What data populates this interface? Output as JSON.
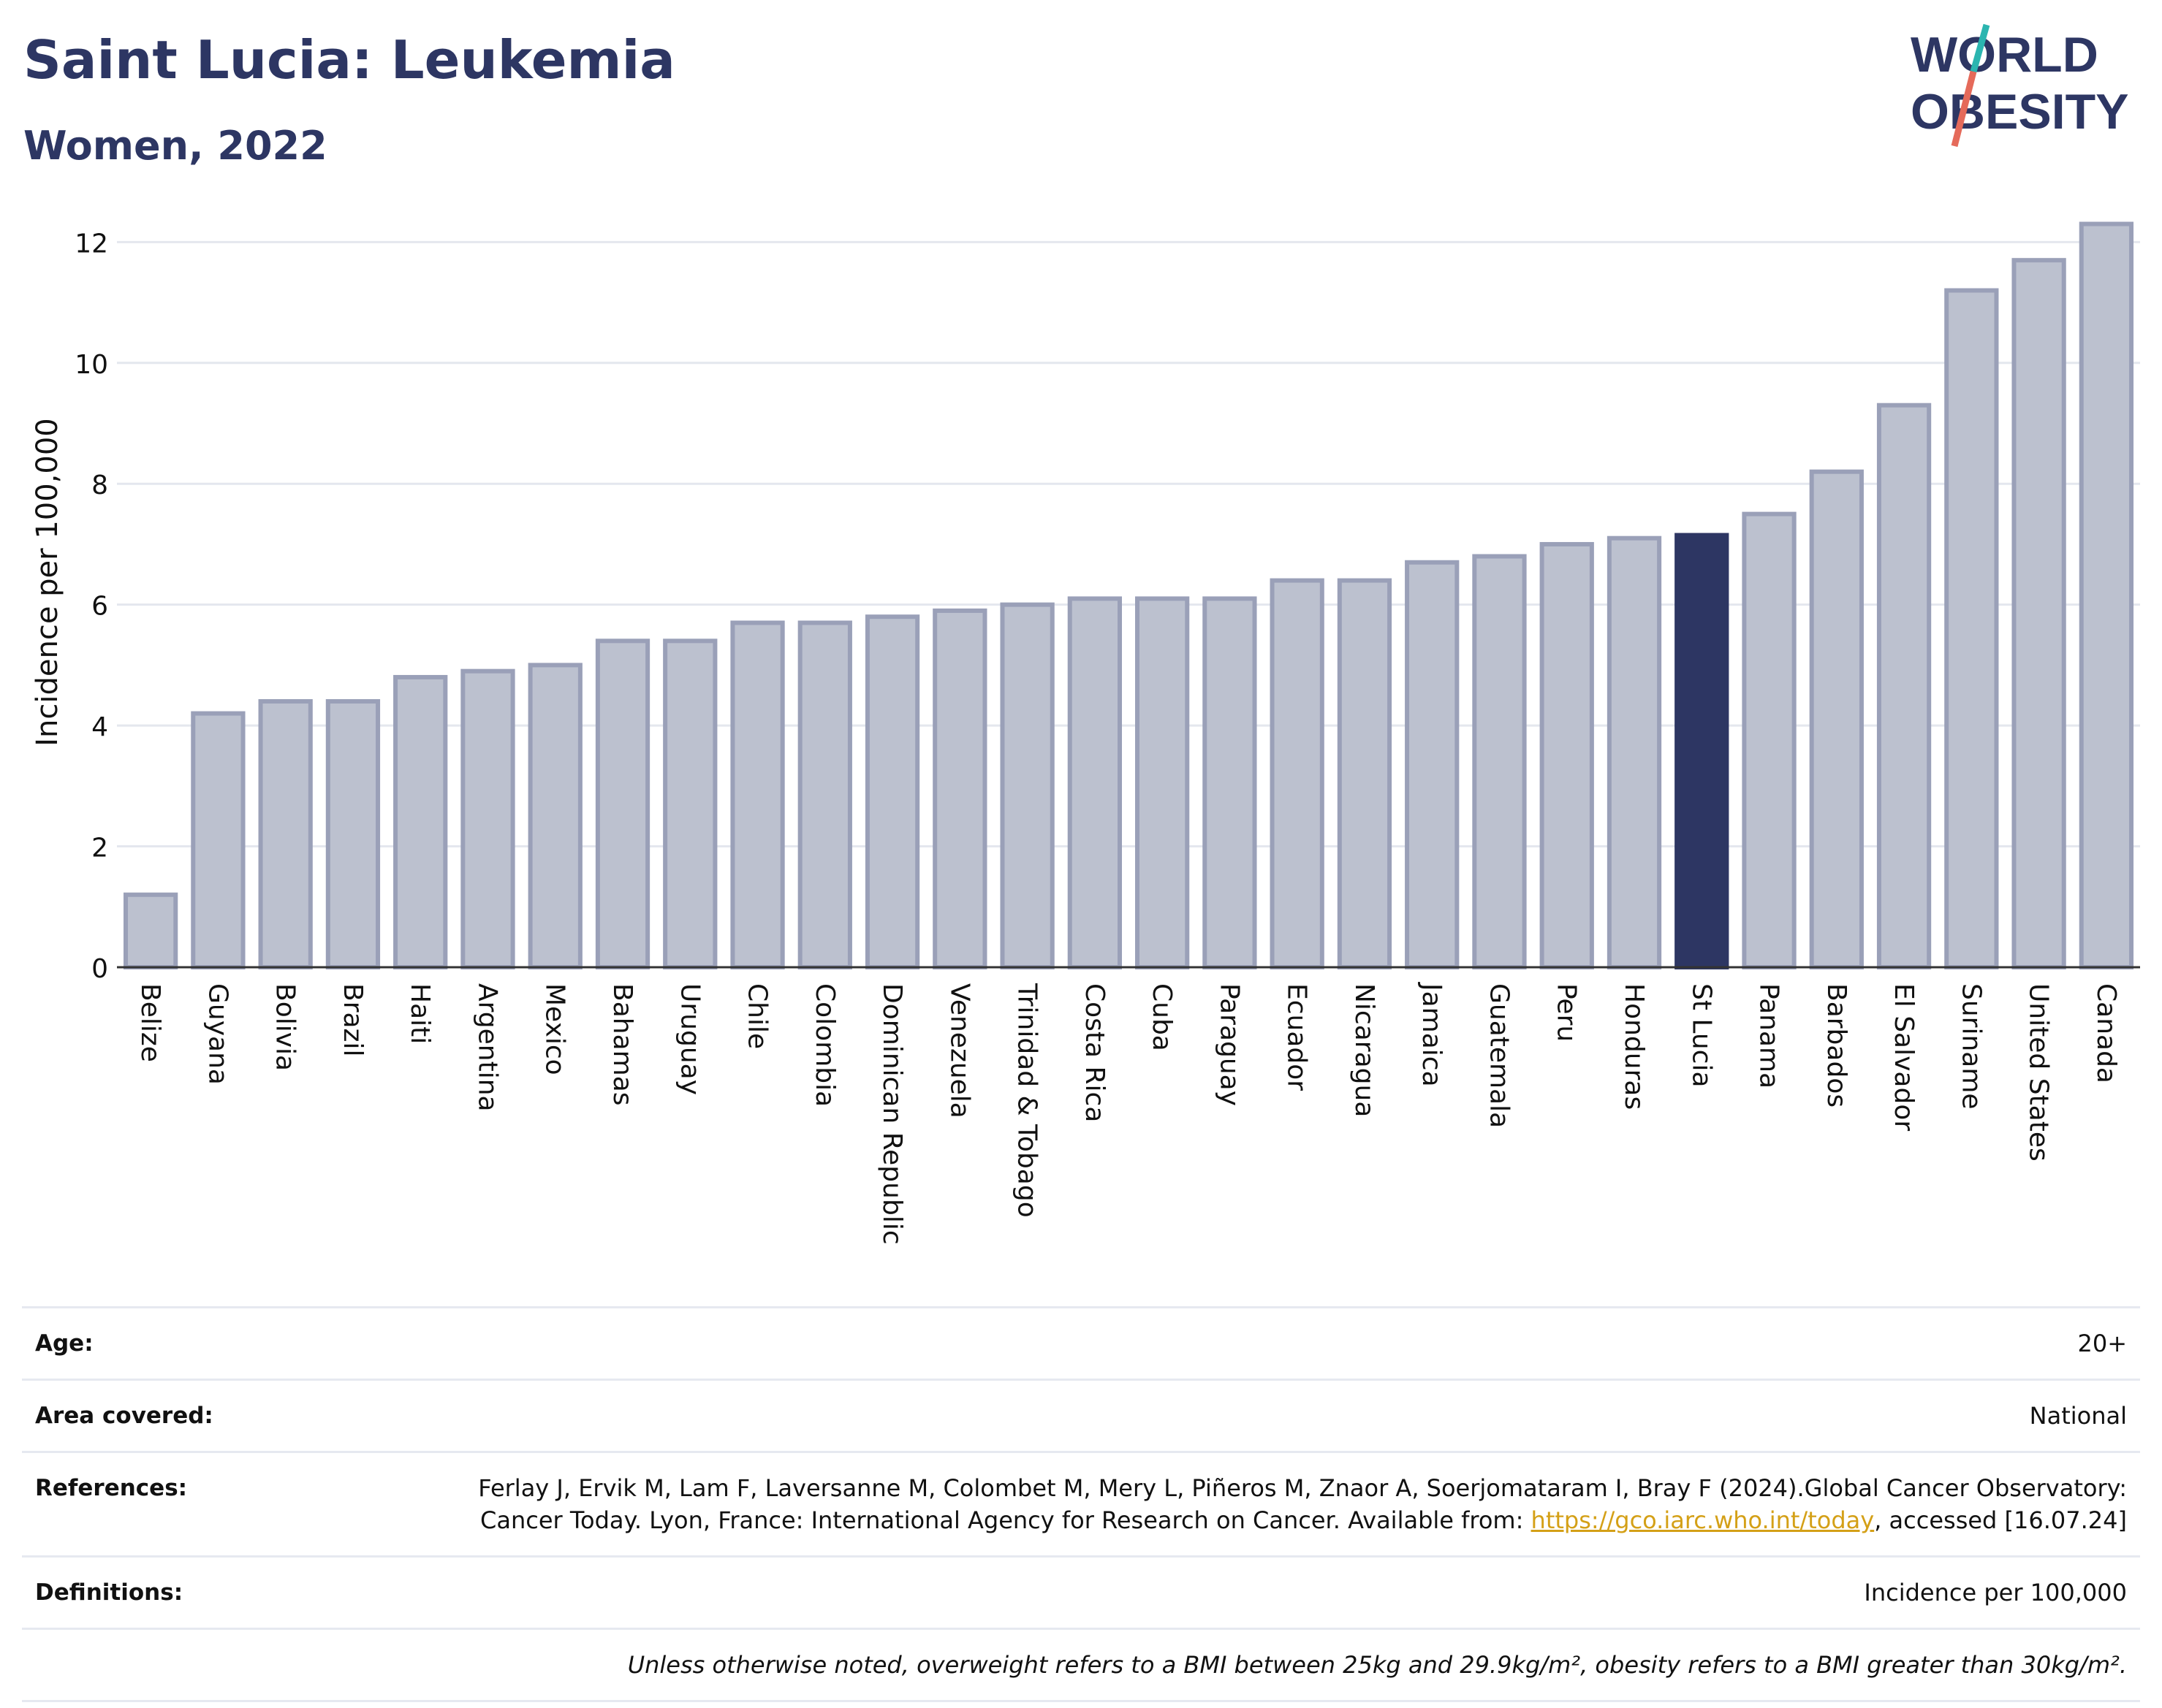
{
  "header": {
    "title": "Saint Lucia: Leukemia",
    "subtitle": "Women, 2022"
  },
  "logo": {
    "line1": "WORLD",
    "line2": "OBESITY"
  },
  "chart_data": {
    "type": "bar",
    "ylabel": "Incidence per 100,000",
    "ylim": [
      0,
      12.5
    ],
    "yticks": [
      0,
      2,
      4,
      6,
      8,
      10,
      12
    ],
    "grid": true,
    "highlight": "St Lucia",
    "colors": {
      "bar": "#bcc1cf",
      "bar_edge": "#9aa0b8",
      "highlight": "#2d3663"
    },
    "categories": [
      "Belize",
      "Guyana",
      "Bolivia",
      "Brazil",
      "Haiti",
      "Argentina",
      "Mexico",
      "Bahamas",
      "Uruguay",
      "Chile",
      "Colombia",
      "Dominican Republic",
      "Venezuela",
      "Trinidad & Tobago",
      "Costa Rica",
      "Cuba",
      "Paraguay",
      "Ecuador",
      "Nicaragua",
      "Jamaica",
      "Guatemala",
      "Peru",
      "Honduras",
      "St Lucia",
      "Panama",
      "Barbados",
      "El Salvador",
      "Suriname",
      "United States",
      "Canada"
    ],
    "values": [
      1.2,
      4.2,
      4.4,
      4.4,
      4.8,
      4.9,
      5.0,
      5.4,
      5.4,
      5.7,
      5.7,
      5.8,
      5.9,
      6.0,
      6.1,
      6.1,
      6.1,
      6.4,
      6.4,
      6.7,
      6.8,
      7.0,
      7.1,
      7.15,
      7.5,
      8.2,
      9.3,
      11.2,
      11.7,
      12.3
    ]
  },
  "info": {
    "age_label": "Age:",
    "age_value": "20+",
    "area_label": "Area covered:",
    "area_value": "National",
    "references_label": "References:",
    "references_text": "Ferlay J, Ervik M, Lam F, Laversanne M, Colombet M, Mery L, Piñeros M, Znaor A, Soerjomataram I, Bray F (2024).Global Cancer Observatory: Cancer Today. Lyon, France: International Agency for Research on Cancer. Available from: ",
    "references_link": "https://gco.iarc.who.int/today",
    "references_suffix": ", accessed [16.07.24]",
    "definitions_label": "Definitions:",
    "definitions_value": "Incidence per 100,000",
    "note": "Unless otherwise noted, overweight refers to a BMI between 25kg and 29.9kg/m², obesity refers to a BMI greater than 30kg/m²."
  }
}
